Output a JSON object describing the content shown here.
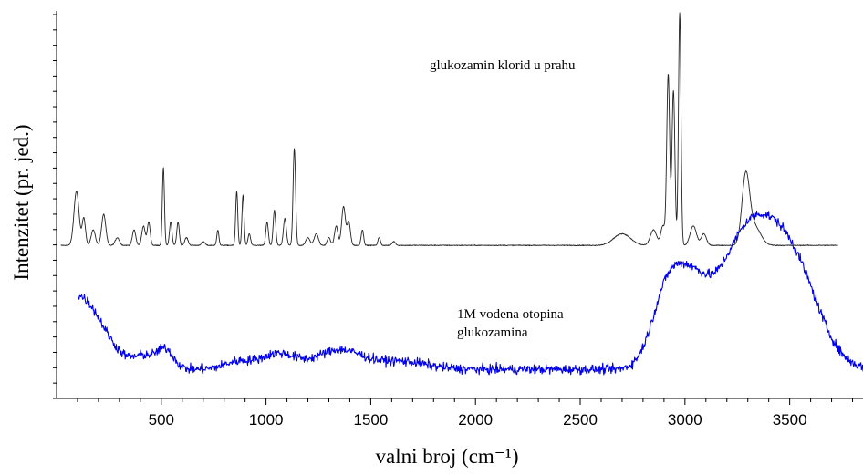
{
  "chart_data": {
    "type": "line",
    "xlabel": "valni broj (cm⁻¹)",
    "ylabel": "Intenzitet (pr. jed.)",
    "xlim": [
      0,
      3850
    ],
    "ylim": [
      0,
      100
    ],
    "x_ticks": [
      "500",
      "1000",
      "1500",
      "2000",
      "2500",
      "3000",
      "3500"
    ],
    "x_tick_values": [
      500,
      1000,
      1500,
      2000,
      2500,
      3000,
      3500
    ],
    "grid": false,
    "y_tick_labels": false,
    "colors": {
      "powder": "#222222",
      "solution": "#0000ee"
    },
    "annotations": [
      {
        "series": "powder",
        "lines": [
          "glukozamin klorid u prahu"
        ]
      },
      {
        "series": "solution",
        "lines": [
          "1M vodena otopina",
          "glukozamina"
        ]
      }
    ],
    "series": [
      {
        "id": "powder",
        "x_range": [
          20,
          3730
        ],
        "baseline": 39.5,
        "peaks": [
          [
            95,
            14,
            12
          ],
          [
            130,
            7,
            8
          ],
          [
            175,
            4,
            10
          ],
          [
            225,
            8,
            10
          ],
          [
            290,
            2,
            10
          ],
          [
            370,
            4,
            8
          ],
          [
            415,
            5,
            8
          ],
          [
            440,
            6,
            7
          ],
          [
            510,
            20,
            5
          ],
          [
            545,
            6,
            6
          ],
          [
            580,
            6,
            6
          ],
          [
            620,
            2,
            8
          ],
          [
            700,
            1,
            8
          ],
          [
            770,
            4,
            5
          ],
          [
            860,
            14,
            5
          ],
          [
            890,
            13,
            5
          ],
          [
            920,
            3,
            6
          ],
          [
            1005,
            6,
            6
          ],
          [
            1040,
            9,
            6
          ],
          [
            1090,
            7,
            7
          ],
          [
            1135,
            25,
            6
          ],
          [
            1200,
            2,
            10
          ],
          [
            1240,
            3,
            10
          ],
          [
            1300,
            2,
            8
          ],
          [
            1335,
            5,
            8
          ],
          [
            1370,
            10,
            9
          ],
          [
            1395,
            6,
            8
          ],
          [
            1460,
            4,
            6
          ],
          [
            1540,
            2,
            6
          ],
          [
            1610,
            1,
            8
          ],
          [
            2700,
            3,
            40
          ],
          [
            2850,
            4,
            15
          ],
          [
            2895,
            5,
            10
          ],
          [
            2920,
            44,
            7
          ],
          [
            2945,
            40,
            7
          ],
          [
            2975,
            60,
            6
          ],
          [
            3040,
            5,
            15
          ],
          [
            3090,
            3,
            12
          ],
          [
            3290,
            17,
            18
          ],
          [
            3330,
            5,
            30
          ]
        ]
      },
      {
        "id": "solution",
        "x_range": [
          100,
          3850
        ],
        "baseline": 7.5,
        "noise": 1.3,
        "peaks": [
          [
            100,
            19,
            120
          ],
          [
            420,
            3,
            50
          ],
          [
            520,
            5,
            40
          ],
          [
            870,
            2,
            70
          ],
          [
            1060,
            4,
            80
          ],
          [
            1350,
            5,
            110
          ],
          [
            1650,
            2,
            120
          ],
          [
            2920,
            20,
            75
          ],
          [
            3040,
            12,
            70
          ],
          [
            3330,
            38,
            170
          ],
          [
            3550,
            12,
            110
          ]
        ]
      }
    ]
  }
}
